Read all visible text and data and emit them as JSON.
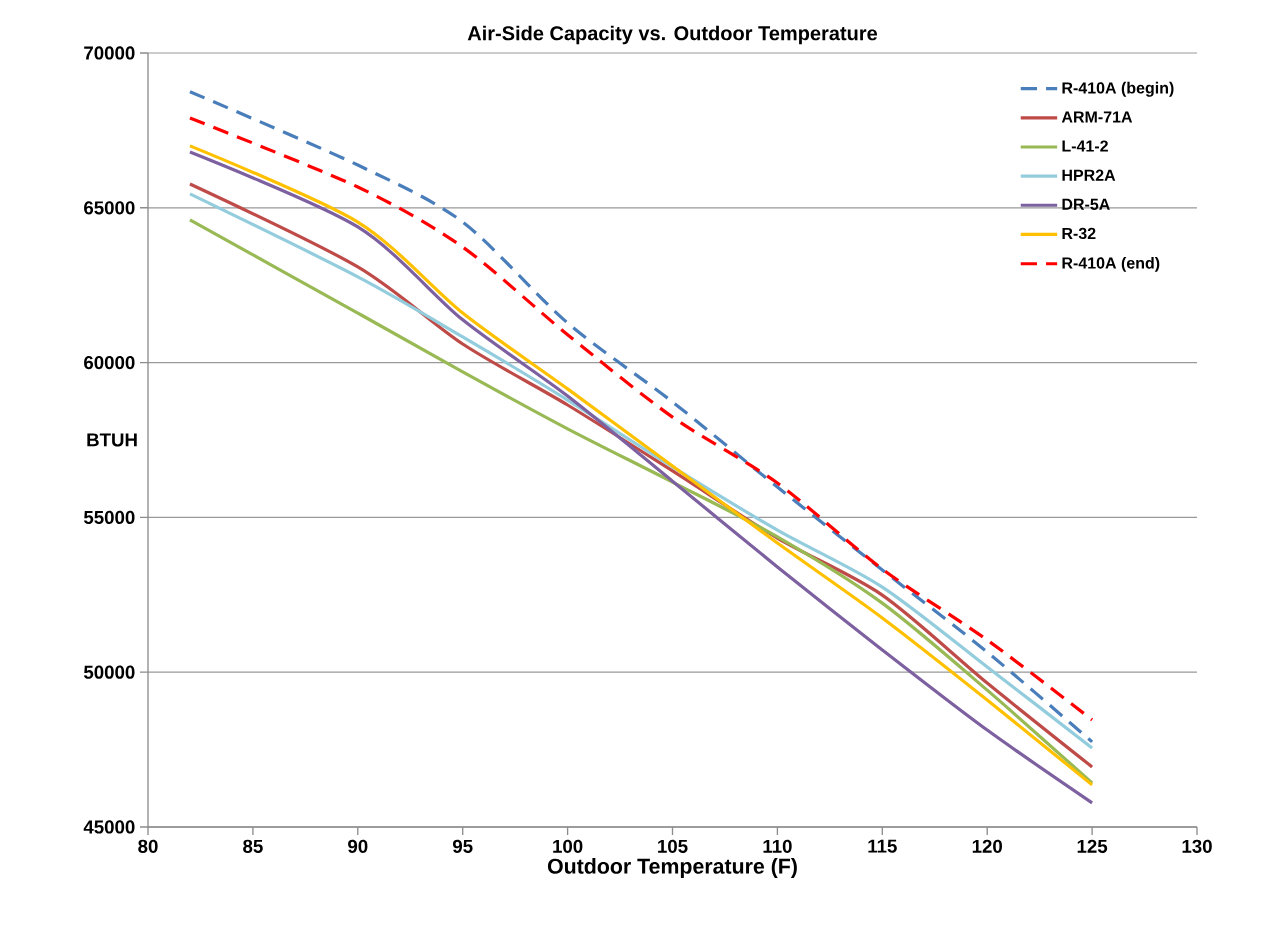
{
  "chart_data": {
    "type": "line",
    "title": "Air-Side Capacity vs. Outdoor Temperature",
    "xlabel": "Outdoor Temperature (F)",
    "ylabel": "BTUH",
    "x": [
      82,
      90,
      95,
      100,
      105,
      110,
      115,
      120,
      125
    ],
    "series": [
      {
        "name": "R-410A (begin)",
        "color": "#4a7ebb",
        "line_style": "dashed",
        "values": [
          68750,
          66380,
          64540,
          61280,
          58730,
          55980,
          53300,
          50650,
          47750
        ]
      },
      {
        "name": "ARM-71A",
        "color": "#be4b48",
        "values": [
          65770,
          63090,
          60600,
          58630,
          56500,
          54330,
          52490,
          49650,
          46940
        ]
      },
      {
        "name": "L-41-2",
        "color": "#98b954",
        "values": [
          64610,
          61600,
          59700,
          57860,
          56140,
          54370,
          52230,
          49420,
          46420
        ]
      },
      {
        "name": "HPR2A",
        "color": "#93cddd",
        "values": [
          65450,
          62770,
          60830,
          58790,
          56630,
          54590,
          52750,
          50170,
          47550
        ]
      },
      {
        "name": "DR-5A",
        "color": "#7d60a0",
        "values": [
          66800,
          64380,
          61380,
          58920,
          56170,
          53400,
          50720,
          48130,
          45780
        ]
      },
      {
        "name": "R-32",
        "color": "#ffc000",
        "values": [
          67000,
          64540,
          61600,
          59150,
          56660,
          54170,
          51750,
          49100,
          46360
        ]
      },
      {
        "name": "R-410A (end)",
        "color": "#ff0000",
        "line_style": "dashed",
        "values": [
          67900,
          65670,
          63730,
          60900,
          58240,
          56110,
          53330,
          51040,
          48460
        ]
      }
    ],
    "xlim": [
      80,
      130
    ],
    "xticks": [
      80,
      85,
      90,
      95,
      100,
      105,
      110,
      115,
      120,
      125,
      130
    ],
    "ylim": [
      45000,
      70000
    ],
    "yticks": [
      45000,
      50000,
      55000,
      60000,
      65000,
      70000
    ],
    "grid": "y",
    "legend": "top right",
    "line_style": "solid"
  }
}
